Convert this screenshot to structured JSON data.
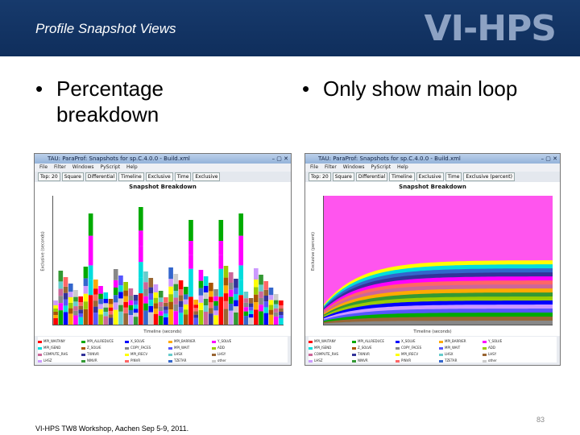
{
  "header": {
    "title": "Profile Snapshot Views",
    "logo_text": "VI-HPS"
  },
  "bullets": [
    {
      "line1": "Percentage",
      "line2": "breakdown"
    },
    {
      "line1": "Only show main loop",
      "line2": ""
    }
  ],
  "bullet_char": "•",
  "left_window": {
    "title": "TAU: ParaProf: Snapshots for sp.C.4.0.0 - Build.xml",
    "menu": [
      "File",
      "Filter",
      "Windows",
      "PyScript",
      "Help"
    ],
    "toolbar": [
      "Top: 20",
      "Square",
      "Differential",
      "Timeline",
      "Exclusive",
      "Time",
      "Exclusive"
    ],
    "chart_title": "Snapshot Breakdown",
    "ylabel": "Exclusive (seconds)",
    "xlabel": "Timeline (seconds)"
  },
  "right_window": {
    "title": "TAU: ParaProf: Snapshots for sp.C.4.0.0 - Build.xml",
    "menu": [
      "File",
      "Filter",
      "Windows",
      "PyScript",
      "Help"
    ],
    "toolbar": [
      "Top: 20",
      "Square",
      "Differential",
      "Timeline",
      "Exclusive",
      "Time",
      "Exclusive (percent)"
    ],
    "chart_title": "Snapshot Breakdown",
    "ylabel": "Exclusive (percent)",
    "xlabel": "Timeline (seconds)"
  },
  "legend": [
    {
      "label": "MPI_WAITANY",
      "color": "#ff0000"
    },
    {
      "label": "MPI_ALLREDUCE",
      "color": "#00aa00"
    },
    {
      "label": "X_SOLVE",
      "color": "#0000ff"
    },
    {
      "label": "MPI_BARRIER",
      "color": "#ffaa00"
    },
    {
      "label": "Y_SOLVE",
      "color": "#ff00ff"
    },
    {
      "label": "MPI_ISEND",
      "color": "#00dddd"
    },
    {
      "label": "Z_SOLVE",
      "color": "#aa5500"
    },
    {
      "label": "COPY_FACES",
      "color": "#888888"
    },
    {
      "label": "MPI_WAIT",
      "color": "#5555ff"
    },
    {
      "label": "ADD",
      "color": "#99cc00"
    },
    {
      "label": "COMPUTE_RHS",
      "color": "#cc6699"
    },
    {
      "label": "TXINVR",
      "color": "#333399"
    },
    {
      "label": "MPI_IRECV",
      "color": "#ffff00"
    },
    {
      "label": "LHSX",
      "color": "#66cccc"
    },
    {
      "label": "LHSY",
      "color": "#996633"
    },
    {
      "label": "LHSZ",
      "color": "#cc99ff"
    },
    {
      "label": "NINVR",
      "color": "#339933"
    },
    {
      "label": "PINVR",
      "color": "#ff6666"
    },
    {
      "label": "TZETAR",
      "color": "#3366cc"
    },
    {
      "label": "other",
      "color": "#cccccc"
    }
  ],
  "footer": "VI-HPS TW8 Workshop, Aachen Sep 5-9, 2011.",
  "page_number": "83"
}
